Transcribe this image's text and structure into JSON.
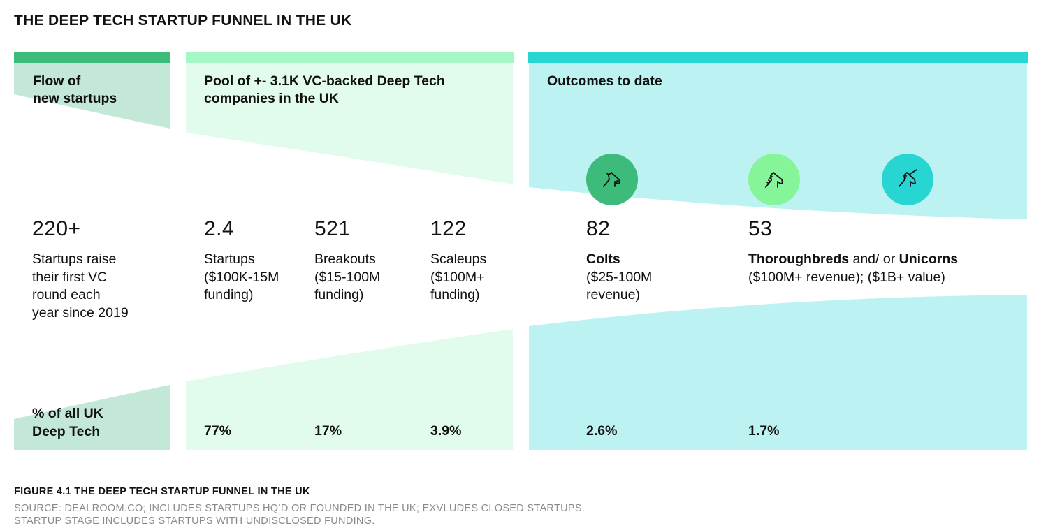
{
  "title": "THE DEEP TECH STARTUP FUNNEL IN THE UK",
  "colors": {
    "flow_bar": "#3dbb7a",
    "flow_fill": "#c3e8d8",
    "pool_bar": "#a6f7c6",
    "pool_fill": "#e1fcec",
    "outcomes_bar": "#27d6d3",
    "outcomes_fill": "#bcf2f1",
    "colt_icon": "#3dbb7a",
    "thoroughbred_icon": "#86f599",
    "unicorn_icon": "#27d6d3"
  },
  "sections": {
    "flow": {
      "header": "Flow of\nnew startups"
    },
    "pool": {
      "header": "Pool of +- 3.1K VC-backed Deep Tech\ncompanies in the UK"
    },
    "outcomes": {
      "header": "Outcomes to date"
    }
  },
  "columns": [
    {
      "id": "new",
      "value": "220+",
      "desc": "Startups raise\ntheir first VC\nround each\nyear since 2019"
    },
    {
      "id": "startups",
      "value": "2.4",
      "desc": "Startups\n($100K-15M\nfunding)",
      "pct": "77%"
    },
    {
      "id": "breakouts",
      "value": "521",
      "desc": "Breakouts\n($15-100M\nfunding)",
      "pct": "17%"
    },
    {
      "id": "scaleups",
      "value": "122",
      "desc": "Scaleups\n($100M+\nfunding)",
      "pct": "3.9%"
    },
    {
      "id": "colts",
      "value": "82",
      "desc_bold": "Colts",
      "desc": "($25-100M\nrevenue)",
      "pct": "2.6%"
    },
    {
      "id": "thoroughbreds",
      "value": "53",
      "desc_bold1": "Thoroughbreds",
      "desc_mid": " and/ or ",
      "desc_bold2": "Unicorns",
      "desc": "($100M+ revenue); ($1B+ value)",
      "pct": "1.7%"
    }
  ],
  "pct_header": "% of  all UK\nDeep Tech",
  "icons": [
    "colt-icon",
    "thoroughbred-icon",
    "unicorn-icon"
  ],
  "caption": "FIGURE 4.1 THE DEEP TECH STARTUP FUNNEL IN THE UK",
  "source_lines": [
    "SOURCE: DEALROOM.CO; INCLUDES STARTUPS HQ’D OR FOUNDED IN THE UK; EXVLUDES CLOSED STARTUPS.",
    "STARTUP STAGE INCLUDES STARTUPS WITH UNDISCLOSED FUNDING."
  ]
}
